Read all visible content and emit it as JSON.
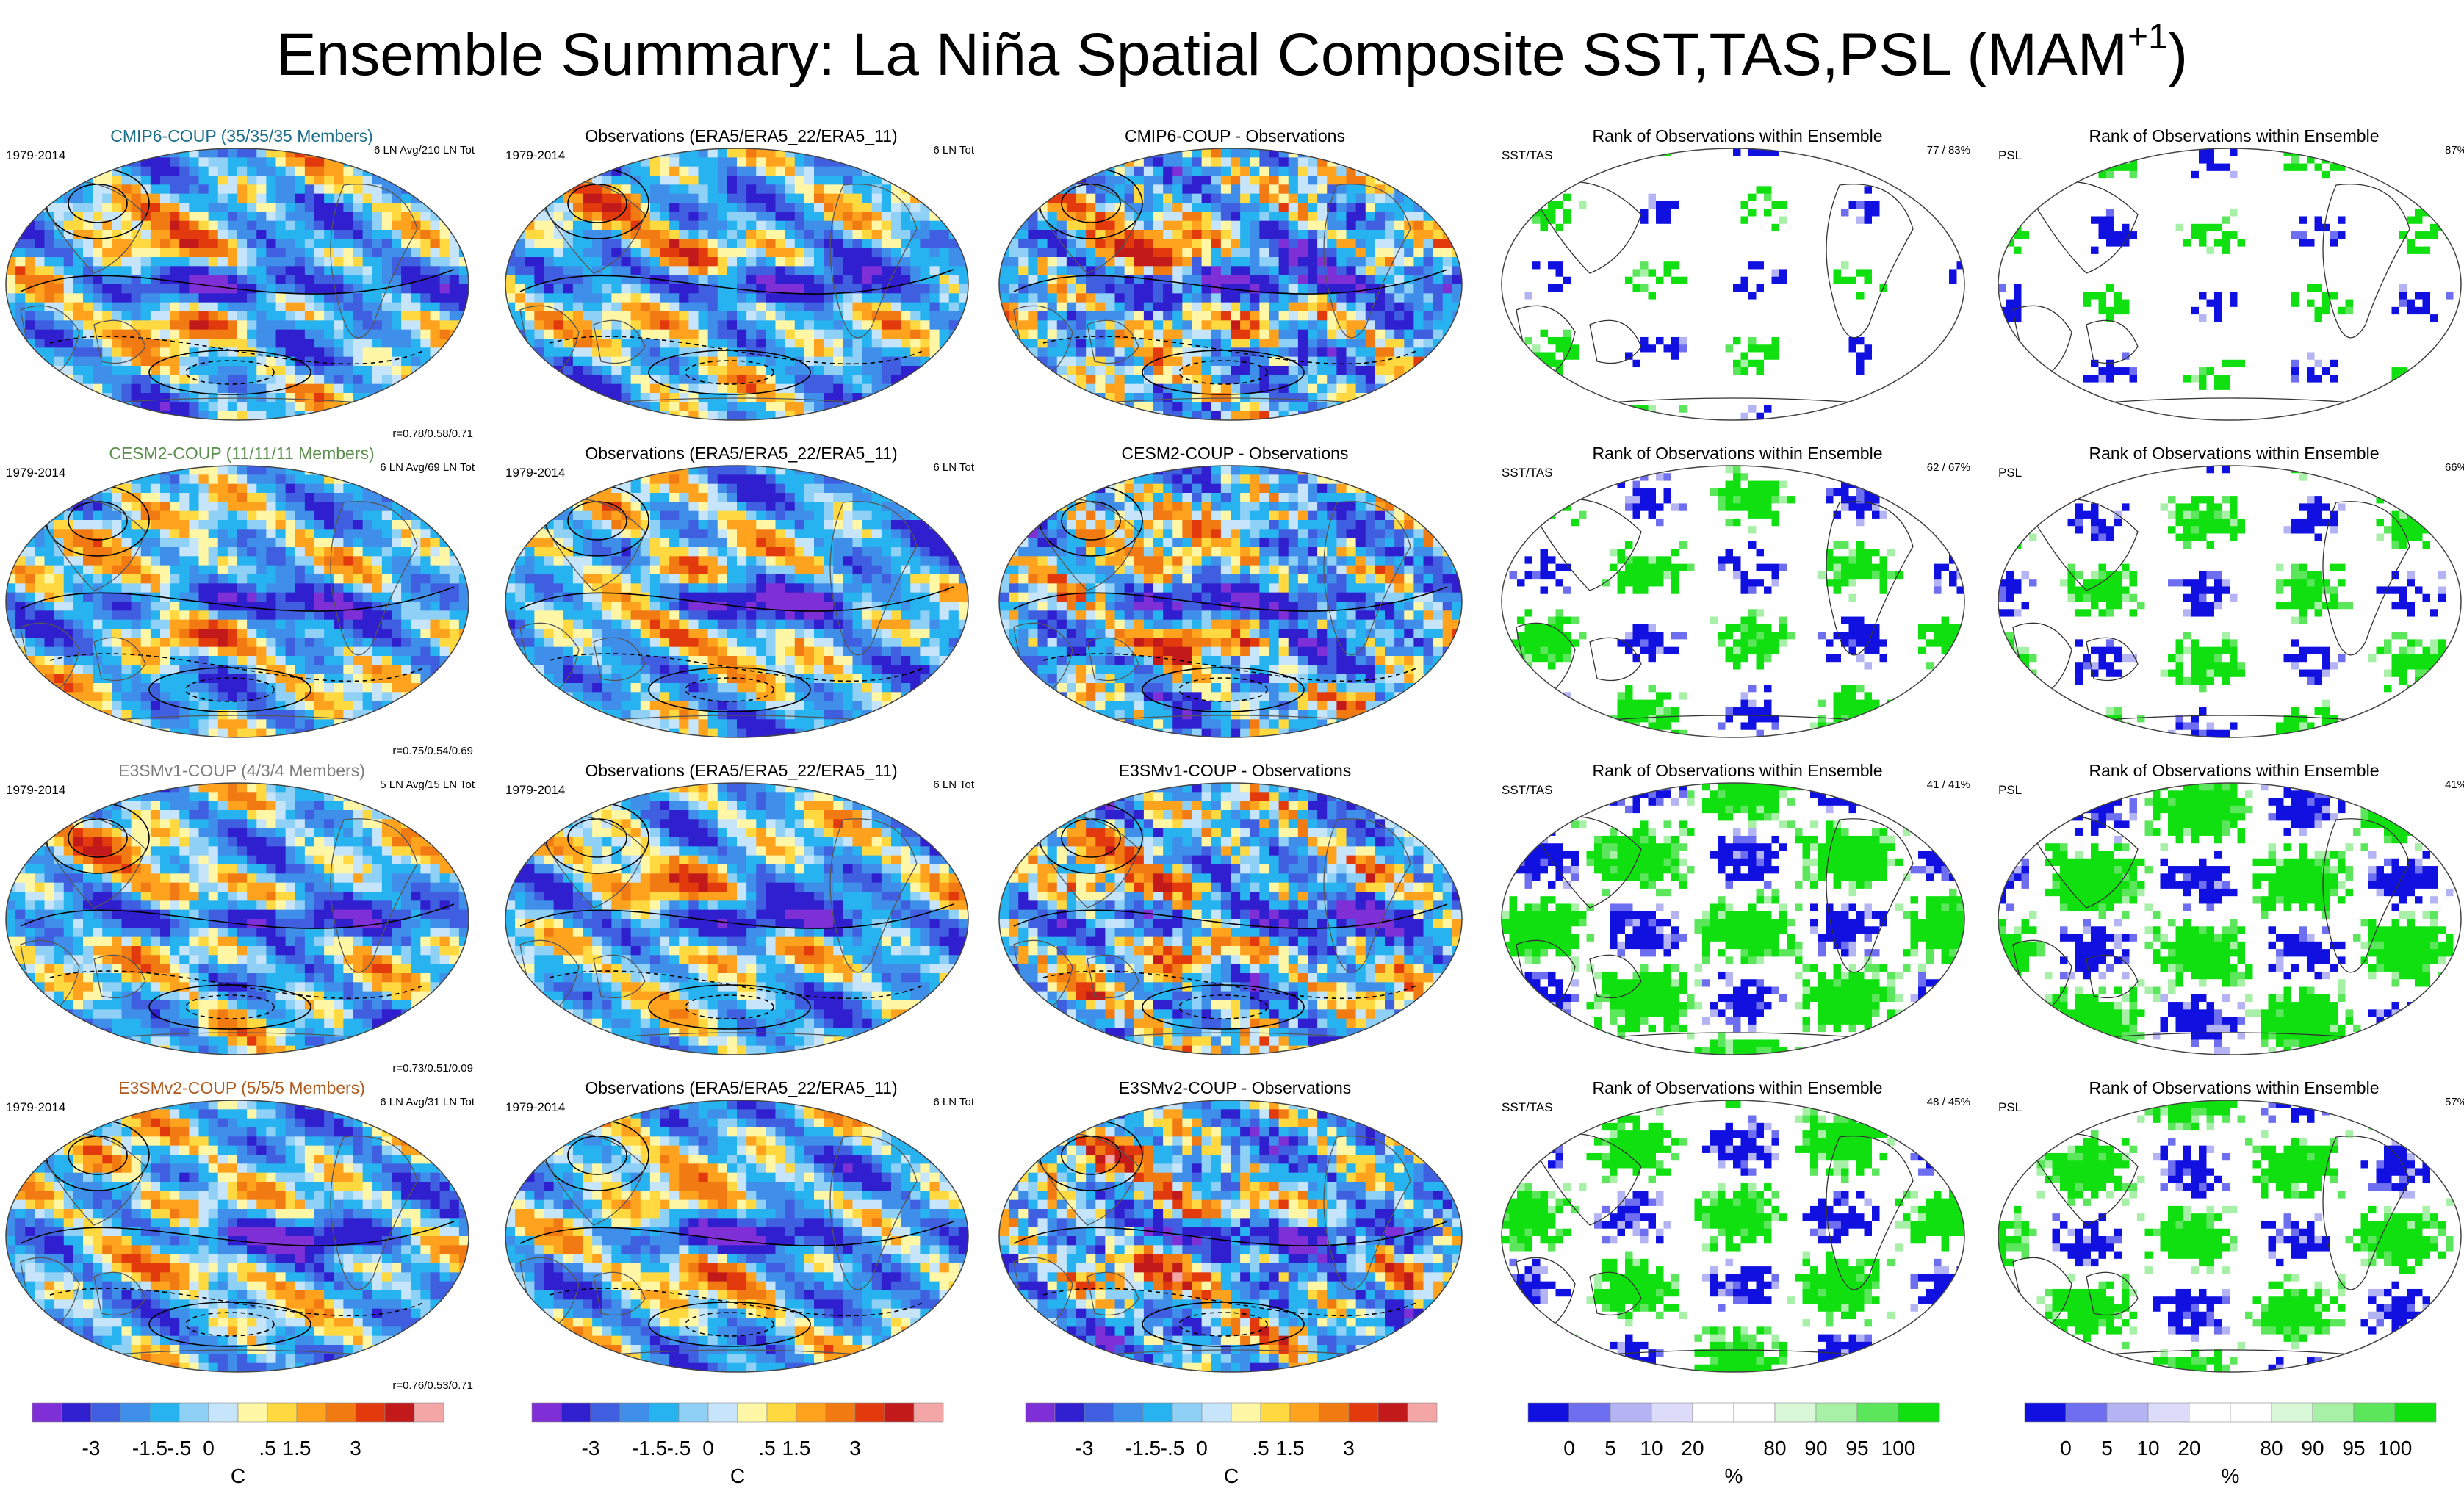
{
  "title": {
    "main": "Ensemble Summary: La Niña Spatial Composite SST,TAS,PSL (MAM",
    "sup": "+1",
    "close": ")"
  },
  "colors": {
    "model_titles": [
      "#1a6e8a",
      "#5b8f4e",
      "#7d7d7d",
      "#b05a1e"
    ],
    "anomaly_scale": [
      "#7f2fd6",
      "#2f1fcf",
      "#3f5fe0",
      "#3f8fea",
      "#27b2f0",
      "#8fd0f7",
      "#c6e4fa",
      "#fff6a6",
      "#ffd93f",
      "#ffa31f",
      "#f27a12",
      "#e33a0d",
      "#c21a1a",
      "#f4a6a6"
    ],
    "rank_scale": [
      "#1010e0",
      "#6e6ef0",
      "#b4b4f4",
      "#dcdcfa",
      "#ffffff",
      "#ffffff",
      "#d8f8d8",
      "#a8f0a8",
      "#5ce65c",
      "#10e010"
    ]
  },
  "chart_data": {
    "type": "heatmap",
    "rows": [
      {
        "model": "CMIP6-COUP (35/35/35 Members)",
        "period": "1979-2014",
        "events": "6 LN Avg/210 LN Tot",
        "corr": "r=0.78/0.58/0.71",
        "obs_title": "Observations (ERA5/ERA5_22/ERA5_11)",
        "obs_period": "1979-2014",
        "obs_events": "6 LN Tot",
        "diff_title": "CMIP6-COUP - Observations",
        "rank_title": "Rank of Observations within Ensemble",
        "rank_sst_label": "SST/TAS",
        "rank_sst_pct": "77 /  83%",
        "rank_psl_label": "PSL",
        "rank_psl_pct": "87%",
        "rank_green_share": 0.16
      },
      {
        "model": "CESM2-COUP (11/11/11 Members)",
        "period": "1979-2014",
        "events": "6 LN Avg/69 LN Tot",
        "corr": "r=0.75/0.54/0.69",
        "obs_title": "Observations (ERA5/ERA5_22/ERA5_11)",
        "obs_period": "1979-2014",
        "obs_events": "6 LN Tot",
        "diff_title": "CESM2-COUP - Observations",
        "rank_title": "Rank of Observations within Ensemble",
        "rank_sst_label": "SST/TAS",
        "rank_sst_pct": "62 /  67%",
        "rank_psl_label": "PSL",
        "rank_psl_pct": "66%",
        "rank_green_share": 0.38
      },
      {
        "model": "E3SMv1-COUP (4/3/4 Members)",
        "period": "1979-2014",
        "events": "5 LN Avg/15 LN Tot",
        "corr": "r=0.73/0.51/0.09",
        "obs_title": "Observations (ERA5/ERA5_22/ERA5_11)",
        "obs_period": "1979-2014",
        "obs_events": "6 LN Tot",
        "diff_title": "E3SMv1-COUP - Observations",
        "rank_title": "Rank of Observations within Ensemble",
        "rank_sst_label": "SST/TAS",
        "rank_sst_pct": "41 /  41%",
        "rank_psl_label": "PSL",
        "rank_psl_pct": "41%",
        "rank_green_share": 0.6
      },
      {
        "model": "E3SMv2-COUP (5/5/5 Members)",
        "period": "1979-2014",
        "events": "6 LN Avg/31 LN Tot",
        "corr": "r=0.76/0.53/0.71",
        "obs_title": "Observations (ERA5/ERA5_22/ERA5_11)",
        "obs_period": "1979-2014",
        "obs_events": "6 LN Tot",
        "diff_title": "E3SMv2-COUP - Observations",
        "rank_title": "Rank of Observations within Ensemble",
        "rank_sst_label": "SST/TAS",
        "rank_sst_pct": "48 /  45%",
        "rank_psl_label": "PSL",
        "rank_psl_pct": "57%",
        "rank_green_share": 0.52
      }
    ],
    "anomaly_colorbar": {
      "labels": [
        "-3",
        "-1.5",
        "-.5",
        "0",
        ".5",
        "1.5",
        "3"
      ],
      "units": "C"
    },
    "rank_colorbar": {
      "labels": [
        "0",
        "5",
        "10",
        "20",
        "80",
        "90",
        "95",
        "100"
      ],
      "units": "%"
    }
  }
}
